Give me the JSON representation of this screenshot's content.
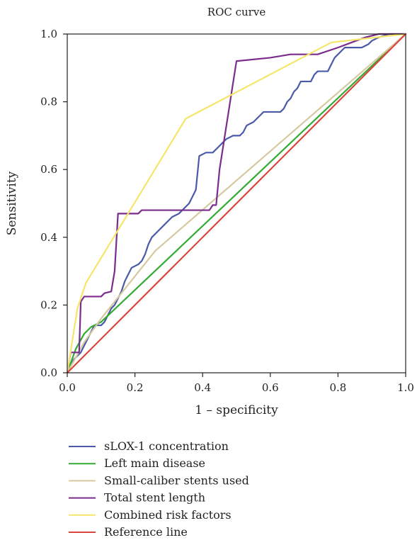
{
  "chart_data": {
    "type": "line",
    "title": "ROC curve",
    "xlabel": "1 – specificity",
    "ylabel": "Sensitivity",
    "xlim": [
      0,
      1
    ],
    "ylim": [
      0,
      1
    ],
    "x_ticks": [
      "0.0",
      "0.2",
      "0.4",
      "0.6",
      "0.8",
      "1.0"
    ],
    "y_ticks": [
      "0.0",
      "0.2",
      "0.4",
      "0.6",
      "0.8",
      "1.0"
    ],
    "grid": false,
    "legend_position": "bottom",
    "series": [
      {
        "name": "sLOX-1 concentration",
        "color": "#4a5aa8",
        "points": [
          [
            0,
            0
          ],
          [
            0.02,
            0.04
          ],
          [
            0.04,
            0.06
          ],
          [
            0.05,
            0.08
          ],
          [
            0.06,
            0.1
          ],
          [
            0.07,
            0.12
          ],
          [
            0.08,
            0.14
          ],
          [
            0.1,
            0.14
          ],
          [
            0.11,
            0.15
          ],
          [
            0.12,
            0.17
          ],
          [
            0.13,
            0.19
          ],
          [
            0.14,
            0.2
          ],
          [
            0.15,
            0.22
          ],
          [
            0.16,
            0.24
          ],
          [
            0.17,
            0.27
          ],
          [
            0.18,
            0.29
          ],
          [
            0.19,
            0.31
          ],
          [
            0.21,
            0.32
          ],
          [
            0.22,
            0.33
          ],
          [
            0.23,
            0.35
          ],
          [
            0.24,
            0.38
          ],
          [
            0.25,
            0.4
          ],
          [
            0.27,
            0.42
          ],
          [
            0.28,
            0.43
          ],
          [
            0.3,
            0.45
          ],
          [
            0.31,
            0.46
          ],
          [
            0.33,
            0.47
          ],
          [
            0.34,
            0.48
          ],
          [
            0.35,
            0.49
          ],
          [
            0.36,
            0.5
          ],
          [
            0.37,
            0.52
          ],
          [
            0.38,
            0.54
          ],
          [
            0.39,
            0.64
          ],
          [
            0.41,
            0.65
          ],
          [
            0.43,
            0.65
          ],
          [
            0.45,
            0.67
          ],
          [
            0.46,
            0.68
          ],
          [
            0.47,
            0.69
          ],
          [
            0.49,
            0.7
          ],
          [
            0.51,
            0.7
          ],
          [
            0.52,
            0.71
          ],
          [
            0.53,
            0.73
          ],
          [
            0.55,
            0.74
          ],
          [
            0.56,
            0.75
          ],
          [
            0.57,
            0.76
          ],
          [
            0.58,
            0.77
          ],
          [
            0.6,
            0.77
          ],
          [
            0.63,
            0.77
          ],
          [
            0.64,
            0.78
          ],
          [
            0.65,
            0.8
          ],
          [
            0.66,
            0.81
          ],
          [
            0.67,
            0.83
          ],
          [
            0.68,
            0.84
          ],
          [
            0.69,
            0.86
          ],
          [
            0.72,
            0.86
          ],
          [
            0.73,
            0.88
          ],
          [
            0.74,
            0.89
          ],
          [
            0.77,
            0.89
          ],
          [
            0.78,
            0.91
          ],
          [
            0.79,
            0.93
          ],
          [
            0.8,
            0.94
          ],
          [
            0.81,
            0.95
          ],
          [
            0.82,
            0.96
          ],
          [
            0.87,
            0.96
          ],
          [
            0.89,
            0.97
          ],
          [
            0.9,
            0.98
          ],
          [
            0.92,
            0.99
          ],
          [
            0.95,
            1.0
          ],
          [
            1,
            1
          ]
        ]
      },
      {
        "name": "Left main disease",
        "color": "#33aa33",
        "points": [
          [
            0,
            0
          ],
          [
            0.025,
            0.07
          ],
          [
            0.05,
            0.115
          ],
          [
            0.07,
            0.135
          ],
          [
            0.09,
            0.145
          ],
          [
            0.1,
            0.15
          ],
          [
            1,
            1
          ]
        ]
      },
      {
        "name": "Small-caliber stents used",
        "color": "#d6c9a0",
        "points": [
          [
            0,
            0
          ],
          [
            0.05,
            0.09
          ],
          [
            0.1,
            0.16
          ],
          [
            0.26,
            0.36
          ],
          [
            1,
            1
          ]
        ]
      },
      {
        "name": "Total stent length",
        "color": "#7b2d8e",
        "points": [
          [
            0,
            0
          ],
          [
            0.01,
            0.06
          ],
          [
            0.035,
            0.06
          ],
          [
            0.04,
            0.21
          ],
          [
            0.05,
            0.225
          ],
          [
            0.1,
            0.225
          ],
          [
            0.11,
            0.235
          ],
          [
            0.13,
            0.24
          ],
          [
            0.14,
            0.3
          ],
          [
            0.15,
            0.47
          ],
          [
            0.21,
            0.47
          ],
          [
            0.22,
            0.48
          ],
          [
            0.42,
            0.48
          ],
          [
            0.43,
            0.495
          ],
          [
            0.44,
            0.495
          ],
          [
            0.45,
            0.6
          ],
          [
            0.5,
            0.92
          ],
          [
            0.6,
            0.93
          ],
          [
            0.66,
            0.94
          ],
          [
            0.74,
            0.94
          ],
          [
            0.8,
            0.96
          ],
          [
            0.84,
            0.975
          ],
          [
            0.88,
            0.99
          ],
          [
            0.92,
            1.0
          ],
          [
            1,
            1
          ]
        ]
      },
      {
        "name": "Combined risk factors",
        "color": "#f5e66b",
        "points": [
          [
            0,
            0
          ],
          [
            0.03,
            0.19
          ],
          [
            0.055,
            0.265
          ],
          [
            0.35,
            0.75
          ],
          [
            0.78,
            0.975
          ],
          [
            1,
            1
          ]
        ]
      },
      {
        "name": "Reference line",
        "color": "#d9463b",
        "points": [
          [
            0,
            0
          ],
          [
            1,
            1
          ]
        ]
      }
    ]
  }
}
